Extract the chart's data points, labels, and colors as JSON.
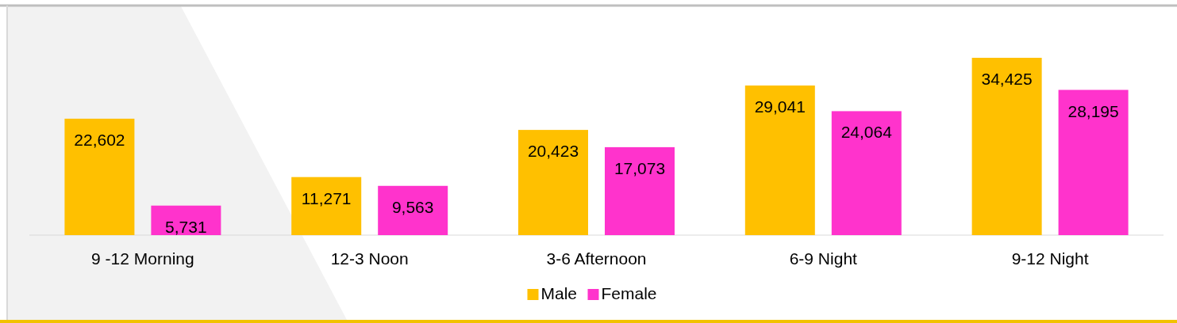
{
  "chart_data": {
    "type": "bar",
    "categories": [
      "9 -12 Morning",
      "12-3 Noon",
      "3-6 Afternoon",
      "6-9 Night",
      "9-12 Night"
    ],
    "series": [
      {
        "name": "Male",
        "color": "#ffc000",
        "values": [
          22602,
          11271,
          20423,
          29041,
          34425
        ],
        "value_labels": [
          "22,602",
          "11,271",
          "20,423",
          "29,041",
          "34,425"
        ]
      },
      {
        "name": "Female",
        "color": "#ff33cc",
        "values": [
          5731,
          9563,
          17073,
          24064,
          28195
        ],
        "value_labels": [
          "5,731",
          "9,563",
          "17,073",
          "24,064",
          "28,195"
        ]
      }
    ],
    "legend": "bottom"
  }
}
